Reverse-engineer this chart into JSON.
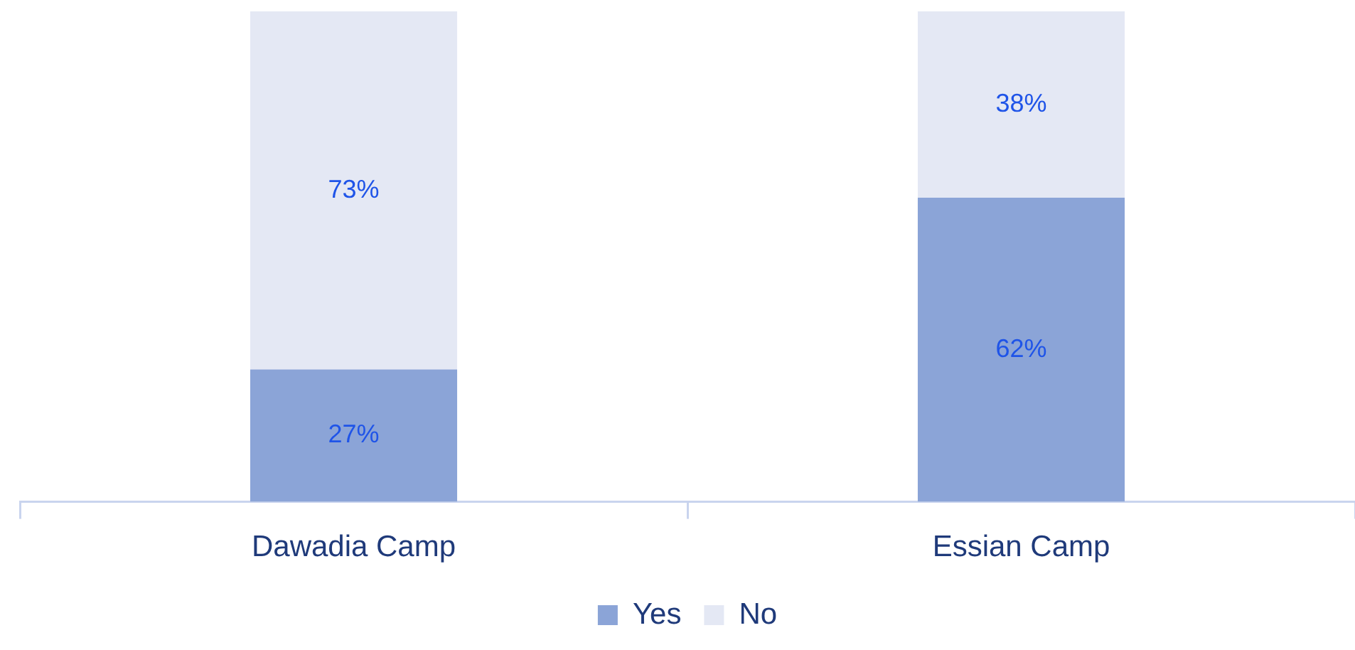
{
  "chart_data": {
    "type": "bar",
    "stacked": true,
    "categories": [
      "Dawadia Camp",
      "Essian Camp"
    ],
    "series": [
      {
        "name": "Yes",
        "color": "#8ba4d7",
        "values": [
          27,
          62
        ],
        "value_labels": [
          "27%",
          "62%"
        ]
      },
      {
        "name": "No",
        "color": "#e4e8f4",
        "values": [
          73,
          38
        ],
        "value_labels": [
          "73%",
          "38%"
        ]
      }
    ],
    "tick_labels": "x",
    "legend": "bottom",
    "grid": false
  }
}
